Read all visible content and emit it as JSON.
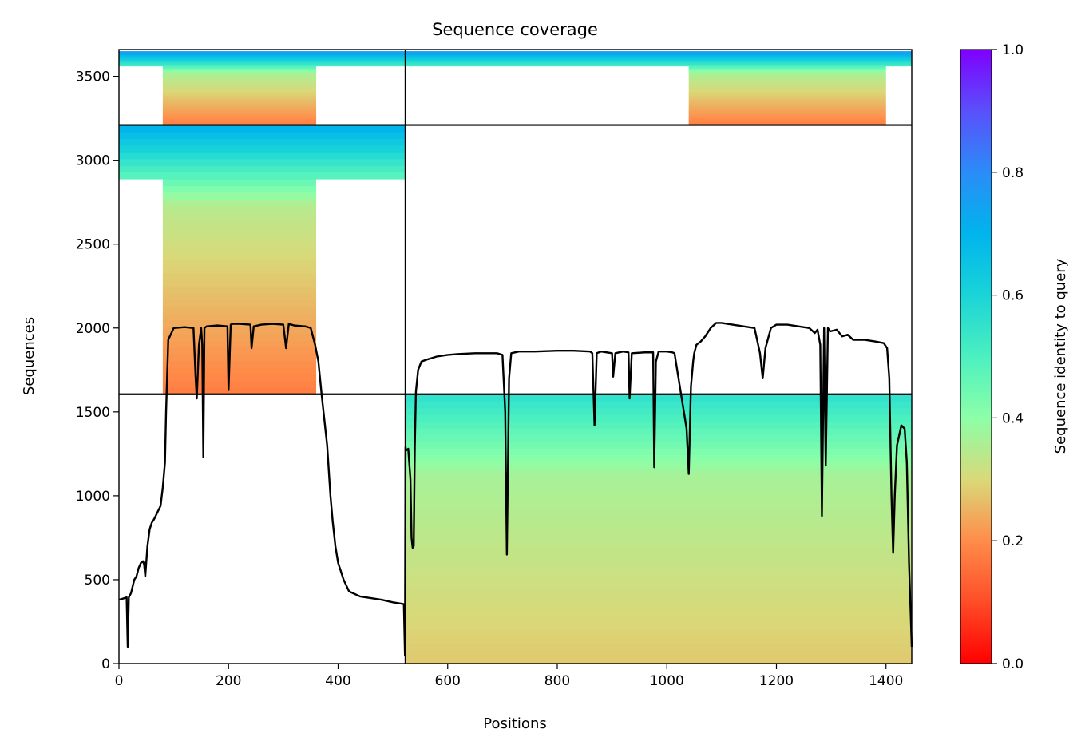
{
  "chart_data": {
    "type": "heatmap",
    "title": "Sequence coverage",
    "xlabel": "Positions",
    "ylabel": "Sequences",
    "xlim": [
      0,
      1447
    ],
    "ylim": [
      0,
      3660
    ],
    "xticks": [
      0,
      200,
      400,
      600,
      800,
      1000,
      1200,
      1400
    ],
    "yticks": [
      0,
      500,
      1000,
      1500,
      2000,
      2500,
      3000,
      3500
    ],
    "colorbar": {
      "label": "Sequence identity to query",
      "ticks": [
        0.0,
        0.2,
        0.4,
        0.6,
        0.8,
        1.0
      ],
      "range": [
        0.0,
        1.0
      ],
      "colormap": "rainbow_r"
    },
    "chain_boundaries": {
      "x": [
        523
      ],
      "y": [
        1605,
        3210
      ]
    },
    "blocks": [
      {
        "x": [
          0,
          523
        ],
        "y": [
          3210,
          3650
        ],
        "identity_bottom": 0.18,
        "identity_top": 0.75,
        "coverage_start": 80,
        "coverage_end": 360
      },
      {
        "x": [
          523,
          1447
        ],
        "y": [
          3210,
          3650
        ],
        "identity_bottom": 0.18,
        "identity_top": 0.75,
        "coverage_start": 1040,
        "coverage_end": 1400
      },
      {
        "x": [
          0,
          523
        ],
        "y": [
          1605,
          3210
        ],
        "identity_bottom": 0.18,
        "identity_top": 0.7,
        "coverage_start": 80,
        "coverage_end": 360
      },
      {
        "x": [
          523,
          1447
        ],
        "y": [
          0,
          1605
        ],
        "identity_bottom": 0.28,
        "identity_top": 0.55,
        "coverage_start": 523,
        "coverage_end": 1447
      }
    ],
    "coverage_line": {
      "x": [
        0,
        5,
        10,
        14,
        16,
        18,
        22,
        28,
        32,
        36,
        40,
        44,
        46,
        48,
        52,
        56,
        60,
        64,
        70,
        76,
        80,
        84,
        86,
        90,
        100,
        120,
        136,
        140,
        142,
        146,
        150,
        152,
        154,
        156,
        160,
        180,
        198,
        200,
        204,
        208,
        220,
        240,
        242,
        246,
        260,
        280,
        300,
        305,
        310,
        320,
        340,
        350,
        358,
        364,
        370,
        380,
        386,
        390,
        395,
        400,
        410,
        420,
        440,
        460,
        480,
        500,
        519,
        520,
        522,
        523,
        524,
        528,
        532,
        534,
        536,
        538,
        540,
        542,
        546,
        552,
        560,
        570,
        580,
        600,
        620,
        650,
        690,
        700,
        705,
        708,
        712,
        716,
        730,
        760,
        800,
        830,
        860,
        864,
        868,
        872,
        880,
        900,
        902,
        906,
        920,
        930,
        932,
        936,
        960,
        975,
        977,
        980,
        985,
        1000,
        1010,
        1014,
        1036,
        1040,
        1044,
        1048,
        1050,
        1054,
        1062,
        1070,
        1080,
        1090,
        1100,
        1120,
        1140,
        1160,
        1170,
        1175,
        1180,
        1190,
        1200,
        1220,
        1240,
        1260,
        1270,
        1275,
        1280,
        1283,
        1287,
        1290,
        1294,
        1298,
        1310,
        1320,
        1330,
        1340,
        1360,
        1380,
        1396,
        1402,
        1406,
        1410,
        1413,
        1416,
        1420,
        1428,
        1434,
        1438,
        1442,
        1447
      ],
      "y": [
        380,
        385,
        390,
        395,
        100,
        395,
        420,
        500,
        520,
        570,
        600,
        610,
        590,
        520,
        700,
        800,
        840,
        860,
        900,
        940,
        1050,
        1200,
        1500,
        1930,
        2000,
        2005,
        2000,
        1700,
        1580,
        1900,
        2000,
        1900,
        1230,
        2000,
        2010,
        2015,
        2010,
        1630,
        2020,
        2025,
        2025,
        2020,
        1880,
        2010,
        2020,
        2025,
        2020,
        1880,
        2025,
        2015,
        2010,
        2000,
        1900,
        1800,
        1600,
        1300,
        1000,
        850,
        700,
        600,
        500,
        430,
        400,
        390,
        380,
        365,
        355,
        350,
        50,
        1290,
        1270,
        1280,
        1100,
        750,
        690,
        700,
        1300,
        1620,
        1750,
        1800,
        1810,
        1820,
        1830,
        1840,
        1845,
        1850,
        1850,
        1840,
        1500,
        650,
        1700,
        1850,
        1860,
        1860,
        1865,
        1865,
        1860,
        1850,
        1420,
        1850,
        1860,
        1850,
        1710,
        1850,
        1860,
        1855,
        1580,
        1850,
        1855,
        1855,
        1170,
        1800,
        1860,
        1860,
        1855,
        1850,
        1400,
        1130,
        1650,
        1800,
        1850,
        1900,
        1920,
        1950,
        2000,
        2030,
        2030,
        2020,
        2010,
        2000,
        1850,
        1700,
        1880,
        2000,
        2020,
        2020,
        2010,
        2000,
        1970,
        1990,
        1900,
        880,
        2000,
        1180,
        2000,
        1980,
        1990,
        1950,
        1960,
        1930,
        1930,
        1920,
        1910,
        1880,
        1700,
        1000,
        660,
        1000,
        1300,
        1420,
        1400,
        1200,
        600,
        100
      ]
    }
  }
}
